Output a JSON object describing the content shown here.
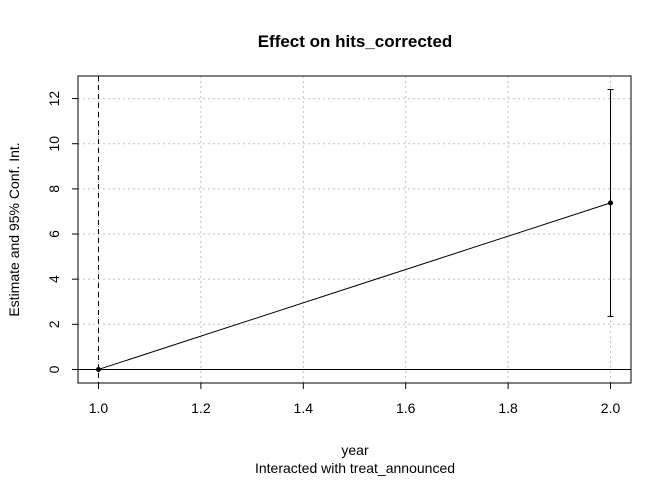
{
  "chart_data": {
    "type": "line",
    "title": "Effect on hits_corrected",
    "xlabel": "year",
    "xlabel_sub": "Interacted with treat_announced",
    "ylabel": "Estimate and 95% Conf. Int.",
    "xlim": [
      0.96,
      2.04
    ],
    "ylim": [
      -0.6,
      13.0
    ],
    "x_ticks": [
      1.0,
      1.2,
      1.4,
      1.6,
      1.8,
      2.0
    ],
    "x_tick_labels": [
      "1.0",
      "1.2",
      "1.4",
      "1.6",
      "1.8",
      "2.0"
    ],
    "y_ticks": [
      0,
      2,
      4,
      6,
      8,
      10,
      12
    ],
    "y_tick_labels": [
      "0",
      "2",
      "4",
      "6",
      "8",
      "10",
      "12"
    ],
    "grid": true,
    "series": [
      {
        "x": [
          1.0,
          2.0
        ],
        "estimate": [
          0.0,
          7.38
        ],
        "ci_low": [
          0.0,
          2.35
        ],
        "ci_high": [
          0.0,
          12.4
        ]
      }
    ],
    "reference_vline_x": 1.0,
    "reference_hline_y": 0
  }
}
